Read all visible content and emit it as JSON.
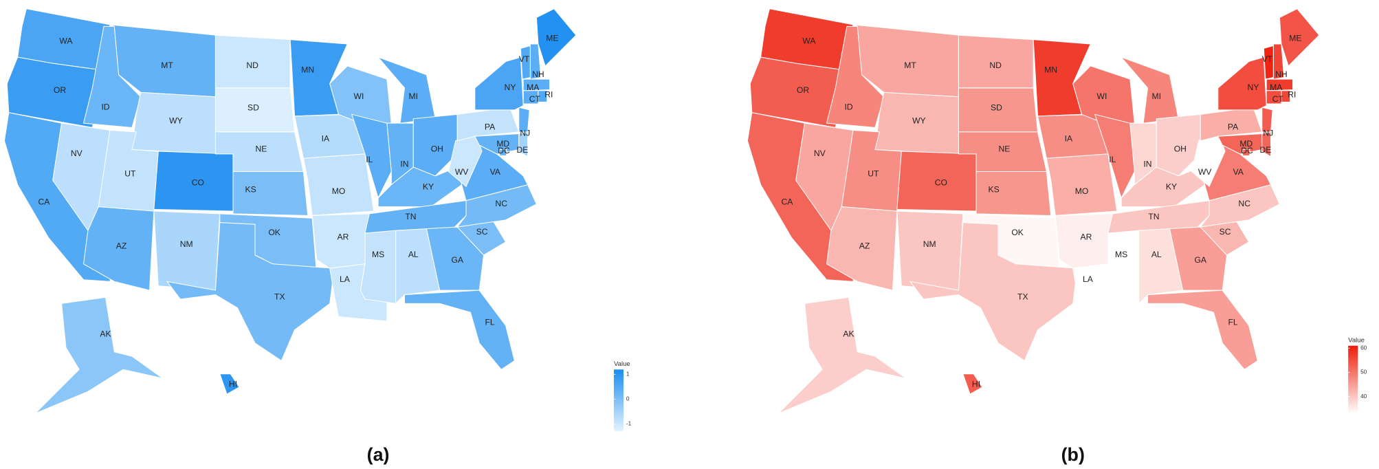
{
  "panels": [
    {
      "caption": "(a)",
      "legend": {
        "title": "Value",
        "lim": [
          -1.3,
          1.2
        ],
        "ticks": [
          -1,
          0,
          1
        ],
        "colors": [
          "#e3f3ff",
          "#1b8df0"
        ]
      },
      "states": [
        {
          "name": "WA",
          "value": 0.6
        },
        {
          "name": "OR",
          "value": 0.8
        },
        {
          "name": "CA",
          "value": 0.5
        },
        {
          "name": "ID",
          "value": 0.2
        },
        {
          "name": "NV",
          "value": -0.8
        },
        {
          "name": "MT",
          "value": 0.3
        },
        {
          "name": "WY",
          "value": -0.8
        },
        {
          "name": "UT",
          "value": -0.9
        },
        {
          "name": "CO",
          "value": 1.0
        },
        {
          "name": "AZ",
          "value": 0.3
        },
        {
          "name": "NM",
          "value": -0.6
        },
        {
          "name": "ND",
          "value": -1.0
        },
        {
          "name": "SD",
          "value": -1.2
        },
        {
          "name": "NE",
          "value": -0.8
        },
        {
          "name": "KS",
          "value": 0.0
        },
        {
          "name": "OK",
          "value": 0.0
        },
        {
          "name": "TX",
          "value": 0.1
        },
        {
          "name": "MN",
          "value": 0.8
        },
        {
          "name": "IA",
          "value": -0.7
        },
        {
          "name": "MO",
          "value": -0.9
        },
        {
          "name": "AR",
          "value": -1.0
        },
        {
          "name": "LA",
          "value": -1.0
        },
        {
          "name": "WI",
          "value": -0.1
        },
        {
          "name": "IL",
          "value": 0.4
        },
        {
          "name": "MI",
          "value": 0.4
        },
        {
          "name": "IN",
          "value": 0.3
        },
        {
          "name": "OH",
          "value": 0.4
        },
        {
          "name": "KY",
          "value": 0.2
        },
        {
          "name": "TN",
          "value": 0.3
        },
        {
          "name": "MS",
          "value": -0.9
        },
        {
          "name": "AL",
          "value": -0.8
        },
        {
          "name": "GA",
          "value": 0.2
        },
        {
          "name": "FL",
          "value": 0.3
        },
        {
          "name": "SC",
          "value": 0.0
        },
        {
          "name": "NC",
          "value": 0.1
        },
        {
          "name": "VA",
          "value": 0.4
        },
        {
          "name": "WV",
          "value": -1.0
        },
        {
          "name": "PA",
          "value": -0.9
        },
        {
          "name": "MD",
          "value": 0.3
        },
        {
          "name": "DE",
          "value": -0.5
        },
        {
          "name": "DC",
          "value": 0.3
        },
        {
          "name": "NJ",
          "value": 0.4
        },
        {
          "name": "NY",
          "value": 0.6
        },
        {
          "name": "VT",
          "value": 0.5
        },
        {
          "name": "NH",
          "value": 0.4
        },
        {
          "name": "ME",
          "value": 1.1
        },
        {
          "name": "MA",
          "value": 0.4
        },
        {
          "name": "CT",
          "value": 0.4
        },
        {
          "name": "RI",
          "value": 0.5
        },
        {
          "name": "AK",
          "value": -0.2
        },
        {
          "name": "HI",
          "value": 1.0
        }
      ]
    },
    {
      "caption": "(b)",
      "legend": {
        "title": "Value",
        "lim": [
          33,
          61
        ],
        "ticks": [
          40,
          50,
          60
        ],
        "colors": [
          "#ffffff",
          "#ee1c0a"
        ]
      },
      "states": [
        {
          "name": "WA",
          "value": 57
        },
        {
          "name": "OR",
          "value": 53
        },
        {
          "name": "CA",
          "value": 52
        },
        {
          "name": "ID",
          "value": 48
        },
        {
          "name": "NV",
          "value": 44
        },
        {
          "name": "MT",
          "value": 44
        },
        {
          "name": "WY",
          "value": 42
        },
        {
          "name": "UT",
          "value": 47
        },
        {
          "name": "CO",
          "value": 52
        },
        {
          "name": "AZ",
          "value": 42
        },
        {
          "name": "NM",
          "value": 40
        },
        {
          "name": "ND",
          "value": 44
        },
        {
          "name": "SD",
          "value": 46
        },
        {
          "name": "NE",
          "value": 47
        },
        {
          "name": "KS",
          "value": 46
        },
        {
          "name": "OK",
          "value": 34
        },
        {
          "name": "TX",
          "value": 40
        },
        {
          "name": "MN",
          "value": 57
        },
        {
          "name": "IA",
          "value": 47
        },
        {
          "name": "MO",
          "value": 43
        },
        {
          "name": "AR",
          "value": 35
        },
        {
          "name": "LA",
          "value": 33
        },
        {
          "name": "WI",
          "value": 50
        },
        {
          "name": "IL",
          "value": 49
        },
        {
          "name": "MI",
          "value": 48
        },
        {
          "name": "IN",
          "value": 38
        },
        {
          "name": "OH",
          "value": 39
        },
        {
          "name": "KY",
          "value": 40
        },
        {
          "name": "TN",
          "value": 40
        },
        {
          "name": "MS",
          "value": 33
        },
        {
          "name": "AL",
          "value": 37
        },
        {
          "name": "GA",
          "value": 45
        },
        {
          "name": "FL",
          "value": 45
        },
        {
          "name": "SC",
          "value": 42
        },
        {
          "name": "NC",
          "value": 40
        },
        {
          "name": "VA",
          "value": 49
        },
        {
          "name": "WV",
          "value": 33
        },
        {
          "name": "PA",
          "value": 43
        },
        {
          "name": "MD",
          "value": 52
        },
        {
          "name": "DE",
          "value": 52
        },
        {
          "name": "DC",
          "value": 52
        },
        {
          "name": "NJ",
          "value": 53
        },
        {
          "name": "NY",
          "value": 55
        },
        {
          "name": "VT",
          "value": 60
        },
        {
          "name": "NH",
          "value": 56
        },
        {
          "name": "ME",
          "value": 54
        },
        {
          "name": "MA",
          "value": 57
        },
        {
          "name": "CT",
          "value": 55
        },
        {
          "name": "RI",
          "value": 56
        },
        {
          "name": "AK",
          "value": 39
        },
        {
          "name": "HI",
          "value": 53
        }
      ]
    }
  ]
}
